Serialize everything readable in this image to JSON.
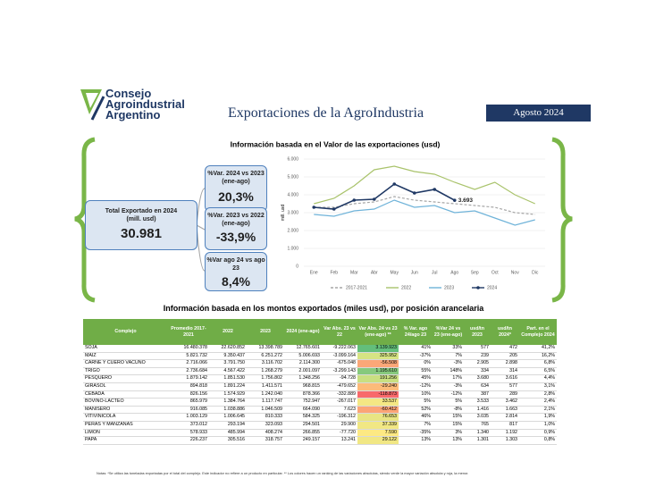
{
  "header": {
    "logo": [
      "Consejo",
      "Agroindustrial",
      "Argentino"
    ],
    "title": "Exportaciones de la AgroIndustria",
    "period": "Agosto 2024"
  },
  "summary": {
    "total_label": "Total Exportado en 2024 (mill. usd)",
    "total_value": "30.981",
    "boxes": [
      {
        "label": "%Var. 2024 vs 2023 (ene-ago)",
        "value": "20,3%"
      },
      {
        "label": "%Var. 2023 vs 2022 (ene-ago)",
        "value": "-33,9%"
      },
      {
        "label": "%Var ago 24 vs ago 23",
        "value": "8,4%"
      }
    ]
  },
  "chart_data": {
    "type": "line",
    "title": "Información basada en el Valor de las exportaciones (usd)",
    "y_label": "mill. usd",
    "categories": [
      "Ene",
      "Feb",
      "Mar",
      "Abr",
      "May",
      "Jun",
      "Jul",
      "Ago",
      "Sep",
      "Oct",
      "Nov",
      "Dic"
    ],
    "ylim": [
      0,
      6000
    ],
    "yticks": [
      0,
      {
        "value": 1000,
        "label": "1.000"
      },
      {
        "value": 2000,
        "label": "2.000"
      },
      {
        "value": 3000,
        "label": "3.000"
      },
      {
        "value": 4000,
        "label": "4.000"
      },
      {
        "value": 5000,
        "label": "5.000"
      },
      {
        "value": 6000,
        "label": "6.000"
      }
    ],
    "grid": true,
    "legend": "bottom",
    "series": [
      {
        "name": "2017-2021",
        "color": "#a6a6a6",
        "dashed": true,
        "values": [
          3300,
          3300,
          3500,
          3600,
          3900,
          3700,
          3600,
          3500,
          3400,
          3300,
          3000,
          2900
        ]
      },
      {
        "name": "2022",
        "color": "#a9c36b",
        "values": [
          3500,
          3800,
          4500,
          5400,
          5600,
          5300,
          5150,
          4700,
          4300,
          4700,
          4000,
          3500
        ]
      },
      {
        "name": "2023",
        "color": "#6fb3d9",
        "values": [
          2900,
          2800,
          3100,
          3200,
          3700,
          3300,
          3400,
          3000,
          3100,
          2700,
          2300,
          2600
        ]
      },
      {
        "name": "2024",
        "color": "#1f3864",
        "markers": true,
        "values": [
          3300,
          3200,
          3700,
          3750,
          4600,
          4100,
          4300,
          3693,
          null,
          null,
          null,
          null
        ],
        "value_labels": [
          null,
          null,
          null,
          null,
          null,
          null,
          null,
          "3.693",
          null,
          null,
          null,
          null
        ]
      }
    ]
  },
  "table": {
    "title": "Información basada en los montos exportados (miles usd), por posición arancelaria",
    "columns": [
      "Complejo",
      "Promedio 2017-2021",
      "2022",
      "2023",
      "2024 (ene-ago)",
      "Var Abs. 23 vs 22",
      "Var Abs. 24 vs 23 (ene-ago) **",
      "% Var. ago 24/ago 23",
      "%Var 24 vs 23 (ene-ago)",
      "usd/tn 2023",
      "usd/tn 2024*",
      "Part. en el Complejo 2024"
    ],
    "rows": [
      [
        "SOJA",
        "16.480.378",
        "22.620.852",
        "13.398.789",
        "12.765.601",
        "-9.222.063",
        "3.139.923",
        "41%",
        "33%",
        "577",
        "472",
        "41,2%"
      ],
      [
        "MAÍZ",
        "5.821.732",
        "9.350.437",
        "6.251.272",
        "5.006.693",
        "-3.099.164",
        "325.952",
        "-37%",
        "7%",
        "239",
        "205",
        "16,2%"
      ],
      [
        "CARNE Y CUERO VACUNO",
        "2.716.066",
        "3.791.750",
        "3.116.702",
        "2.114.300",
        "-675.048",
        "-56.508",
        "0%",
        "-3%",
        "2.905",
        "2.898",
        "6,8%"
      ],
      [
        "TRIGO",
        "2.736.684",
        "4.567.422",
        "1.268.279",
        "2.001.097",
        "-3.299.143",
        "1.195.610",
        "55%",
        "148%",
        "334",
        "314",
        "6,5%"
      ],
      [
        "PESQUERO",
        "1.879.142",
        "1.851.530",
        "1.756.802",
        "1.348.256",
        "-94.728",
        "191.256",
        "45%",
        "17%",
        "3.680",
        "3.616",
        "4,4%"
      ],
      [
        "GIRASOL",
        "894.818",
        "1.891.224",
        "1.411.571",
        "968.815",
        "-479.652",
        "-29.240",
        "-12%",
        "-3%",
        "634",
        "577",
        "3,1%"
      ],
      [
        "CEBADA",
        "826.156",
        "1.574.929",
        "1.242.040",
        "878.366",
        "-332.889",
        "-118.873",
        "10%",
        "-12%",
        "387",
        "289",
        "2,8%"
      ],
      [
        "BOVINO-LACTEO",
        "865.979",
        "1.384.764",
        "1.117.747",
        "752.947",
        "-267.017",
        "33.537",
        "5%",
        "5%",
        "3.533",
        "3.462",
        "2,4%"
      ],
      [
        "MANISERO",
        "916.085",
        "1.038.886",
        "1.046.509",
        "664.090",
        "7.623",
        "-60.412",
        "52%",
        "-8%",
        "1.416",
        "1.663",
        "2,1%"
      ],
      [
        "VITIVINICOLA",
        "1.003.129",
        "1.006.645",
        "810.333",
        "584.325",
        "-196.312",
        "76.653",
        "46%",
        "15%",
        "3.035",
        "2.814",
        "1,9%"
      ],
      [
        "PERAS Y MANZANAS",
        "373.012",
        "293.194",
        "323.093",
        "294.501",
        "29.900",
        "37.339",
        "7%",
        "15%",
        "765",
        "817",
        "1,0%"
      ],
      [
        "LIMÓN",
        "578.933",
        "485.994",
        "408.274",
        "266.855",
        "-77.720",
        "7.590",
        "-35%",
        "3%",
        "1.340",
        "1.192",
        "0,9%"
      ],
      [
        "PAPA",
        "226.237",
        "305.516",
        "318.757",
        "249.157",
        "13.241",
        "29.122",
        "13%",
        "13%",
        "1.301",
        "1.303",
        "0,8%"
      ]
    ],
    "highlight_colors": [
      "#63be7b",
      "#d6e483",
      "#fba778",
      "#86c97d",
      "#c9df81",
      "#fcbb7a",
      "#f8696b",
      "#f4e784",
      "#fba476",
      "#e8e583",
      "#f1e784",
      "#fde983",
      "#f1e784"
    ]
  },
  "notes": "Notas: *Se utiliza las toneladas exportadas por el total del complejo. Este indicador no refiere a un producto en particular. ** Los colores hacen un ranking de las variaciones absolutas, siendo verde la mayor variación absoluta y roja, la menor."
}
